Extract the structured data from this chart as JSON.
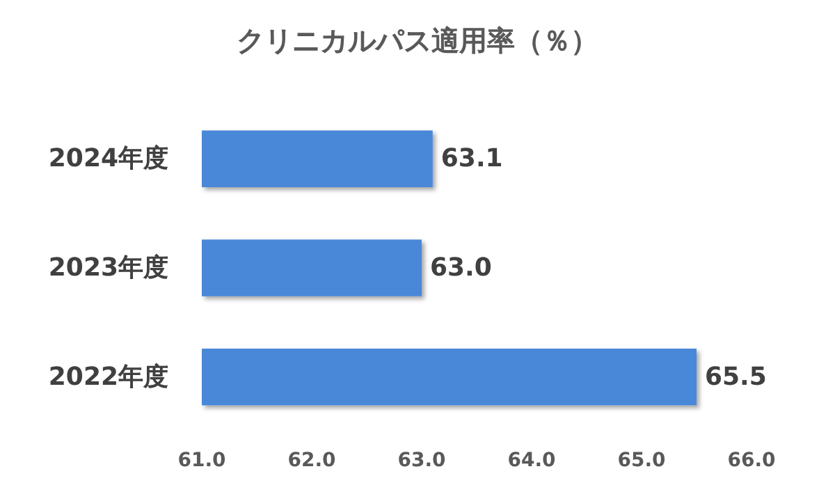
{
  "chart_data": {
    "type": "bar",
    "orientation": "horizontal",
    "title": "クリニカルパス適用率（％）",
    "categories": [
      "2024年度",
      "2023年度",
      "2022年度"
    ],
    "values": [
      63.1,
      63.0,
      65.5
    ],
    "value_labels": [
      "63.1",
      "63.0",
      "65.5"
    ],
    "color": "#4a88d8",
    "xlim": [
      61,
      66
    ],
    "xticks": [
      {
        "value": 61,
        "label": "61.0"
      },
      {
        "value": 62,
        "label": "62.0"
      },
      {
        "value": 63,
        "label": "63.0"
      },
      {
        "value": 64,
        "label": "64.0"
      },
      {
        "value": 65,
        "label": "65.0"
      },
      {
        "value": 66,
        "label": "66.0"
      }
    ],
    "grid": false
  }
}
